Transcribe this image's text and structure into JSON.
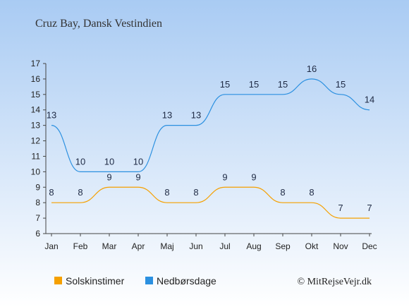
{
  "chart_data": {
    "type": "line",
    "title": "Cruz Bay, Dansk Vestindien",
    "categories": [
      "Jan",
      "Feb",
      "Mar",
      "Apr",
      "Maj",
      "Jun",
      "Jul",
      "Aug",
      "Sep",
      "Okt",
      "Nov",
      "Dec"
    ],
    "ylim": [
      6,
      17
    ],
    "yticks": [
      6,
      7,
      8,
      9,
      10,
      11,
      12,
      13,
      14,
      15,
      16,
      17
    ],
    "grid": false,
    "legend_position": "bottom-left",
    "series": [
      {
        "name": "Solskinstimer",
        "color": "#f5a000",
        "values": [
          8,
          8,
          9,
          9,
          8,
          8,
          9,
          9,
          8,
          8,
          7,
          7
        ]
      },
      {
        "name": "Nedbørsdage",
        "color": "#2b90e0",
        "values": [
          13,
          10,
          10,
          10,
          13,
          13,
          15,
          15,
          15,
          16,
          15,
          14
        ]
      }
    ],
    "credit": "© MitRejseVejr.dk"
  }
}
